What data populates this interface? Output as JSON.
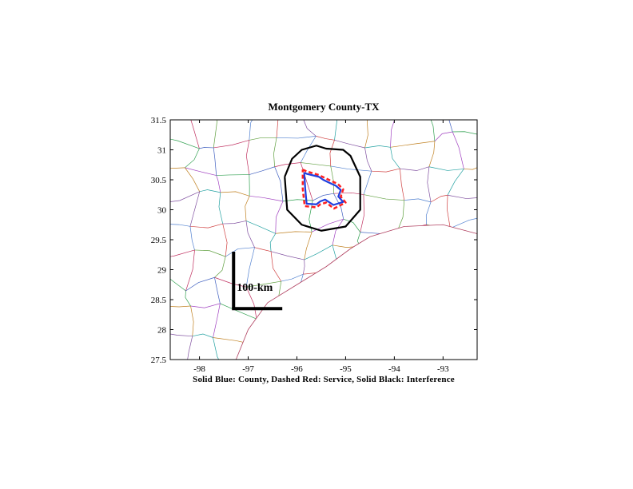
{
  "title": "Montgomery County-TX",
  "caption": "Solid Blue: County, Dashed Red: Service, Solid Black: Interference",
  "scale_label": "100-km",
  "chart_data": {
    "type": "map",
    "xlim": [
      -98.6,
      -92.3
    ],
    "ylim": [
      27.5,
      31.5
    ],
    "x_ticks": [
      -98,
      -97,
      -96,
      -95,
      -94,
      -93
    ],
    "y_ticks": [
      27.5,
      28,
      28.5,
      29,
      29.5,
      30,
      30.5,
      31,
      31.5
    ],
    "layers": [
      {
        "label": "County",
        "color": "#1f3fdf",
        "style": "solid",
        "points": [
          [
            -95.85,
            30.62
          ],
          [
            -95.8,
            30.6
          ],
          [
            -95.55,
            30.55
          ],
          [
            -95.46,
            30.5
          ],
          [
            -95.36,
            30.46
          ],
          [
            -95.2,
            30.4
          ],
          [
            -95.1,
            30.33
          ],
          [
            -95.15,
            30.22
          ],
          [
            -95.05,
            30.13
          ],
          [
            -95.25,
            30.08
          ],
          [
            -95.42,
            30.17
          ],
          [
            -95.52,
            30.14
          ],
          [
            -95.6,
            30.09
          ],
          [
            -95.8,
            30.1
          ],
          [
            -95.83,
            30.36
          ],
          [
            -95.85,
            30.62
          ]
        ]
      },
      {
        "label": "Service",
        "color": "#ff2020",
        "style": "dashed",
        "points": [
          [
            -95.88,
            30.67
          ],
          [
            -95.8,
            30.64
          ],
          [
            -95.55,
            30.58
          ],
          [
            -95.45,
            30.54
          ],
          [
            -95.32,
            30.49
          ],
          [
            -95.16,
            30.43
          ],
          [
            -95.05,
            30.34
          ],
          [
            -95.1,
            30.22
          ],
          [
            -95.0,
            30.12
          ],
          [
            -95.24,
            30.02
          ],
          [
            -95.4,
            30.12
          ],
          [
            -95.52,
            30.09
          ],
          [
            -95.6,
            30.04
          ],
          [
            -95.84,
            30.06
          ],
          [
            -95.88,
            30.35
          ],
          [
            -95.88,
            30.67
          ]
        ]
      },
      {
        "label": "Interference",
        "color": "#000000",
        "style": "solid",
        "points": [
          [
            -96.25,
            30.55
          ],
          [
            -96.1,
            30.85
          ],
          [
            -95.9,
            31.0
          ],
          [
            -95.6,
            31.07
          ],
          [
            -95.4,
            31.02
          ],
          [
            -95.05,
            31.0
          ],
          [
            -94.9,
            30.9
          ],
          [
            -94.7,
            30.55
          ],
          [
            -94.7,
            30.0
          ],
          [
            -95.0,
            29.72
          ],
          [
            -95.5,
            29.65
          ],
          [
            -95.9,
            29.75
          ],
          [
            -96.2,
            30.0
          ],
          [
            -96.25,
            30.55
          ]
        ]
      }
    ],
    "scale_bar": {
      "lon": -97.3,
      "lat_top": 29.3,
      "lat_bottom": 28.35,
      "lon_end": -96.3
    }
  }
}
